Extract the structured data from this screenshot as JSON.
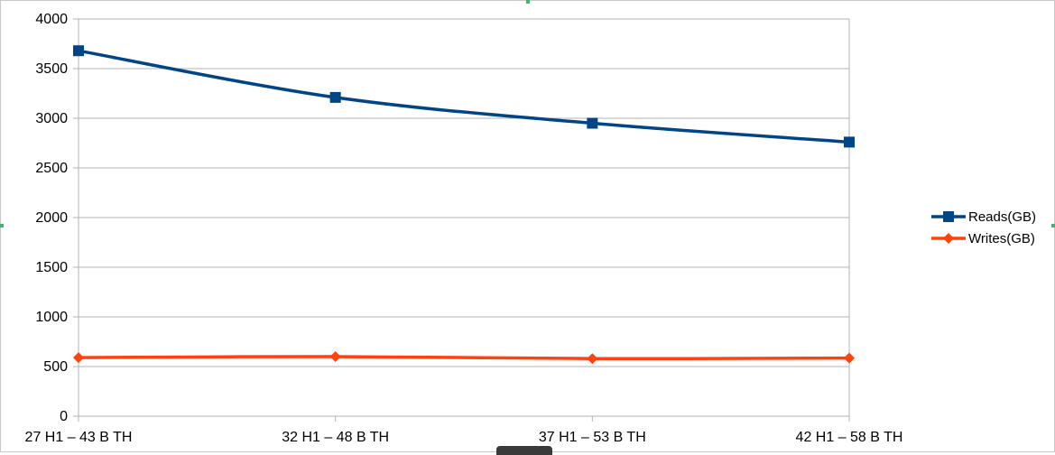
{
  "chart_data": {
    "type": "line",
    "title": "",
    "xlabel": "",
    "ylabel": "",
    "categories": [
      "27 H1 – 43 B TH",
      "32 H1 – 48 B TH",
      "37 H1 – 53 B TH",
      "42 H1 – 58 B TH"
    ],
    "ylim": [
      0,
      4000
    ],
    "yticks": [
      0,
      500,
      1000,
      1500,
      2000,
      2500,
      3000,
      3500,
      4000
    ],
    "grid": true,
    "legend_position": "right",
    "series": [
      {
        "name": "Reads(GB)",
        "values": [
          3680,
          3210,
          2950,
          2760
        ],
        "color": "#004586",
        "marker": "square"
      },
      {
        "name": "Writes(GB)",
        "values": [
          590,
          600,
          580,
          585
        ],
        "color": "#ff420e",
        "marker": "diamond"
      }
    ]
  }
}
